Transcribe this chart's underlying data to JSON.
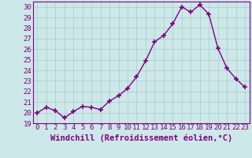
{
  "x": [
    0,
    1,
    2,
    3,
    4,
    5,
    6,
    7,
    8,
    9,
    10,
    11,
    12,
    13,
    14,
    15,
    16,
    17,
    18,
    19,
    20,
    21,
    22,
    23
  ],
  "y": [
    20.0,
    20.5,
    20.2,
    19.5,
    20.1,
    20.6,
    20.5,
    20.3,
    21.1,
    21.6,
    22.3,
    23.4,
    24.9,
    26.7,
    27.3,
    28.4,
    30.0,
    29.5,
    30.2,
    29.3,
    26.1,
    24.2,
    23.2,
    22.4
  ],
  "line_color": "#800080",
  "marker": "+",
  "bg_color": "#cce8e8",
  "grid_color": "#aacccc",
  "xlabel": "Windchill (Refroidissement éolien,°C)",
  "xlim": [
    -0.5,
    23.5
  ],
  "ylim": [
    19,
    30.5
  ],
  "yticks": [
    19,
    20,
    21,
    22,
    23,
    24,
    25,
    26,
    27,
    28,
    29,
    30
  ],
  "xticks": [
    0,
    1,
    2,
    3,
    4,
    5,
    6,
    7,
    8,
    9,
    10,
    11,
    12,
    13,
    14,
    15,
    16,
    17,
    18,
    19,
    20,
    21,
    22,
    23
  ],
  "label_color": "#800080",
  "tick_color": "#800080",
  "spine_color": "#800080",
  "font_family": "monospace",
  "xlabel_fontsize": 7.5,
  "tick_fontsize": 6.5,
  "linewidth": 1.0,
  "markersize": 5,
  "markeredgewidth": 1.2
}
